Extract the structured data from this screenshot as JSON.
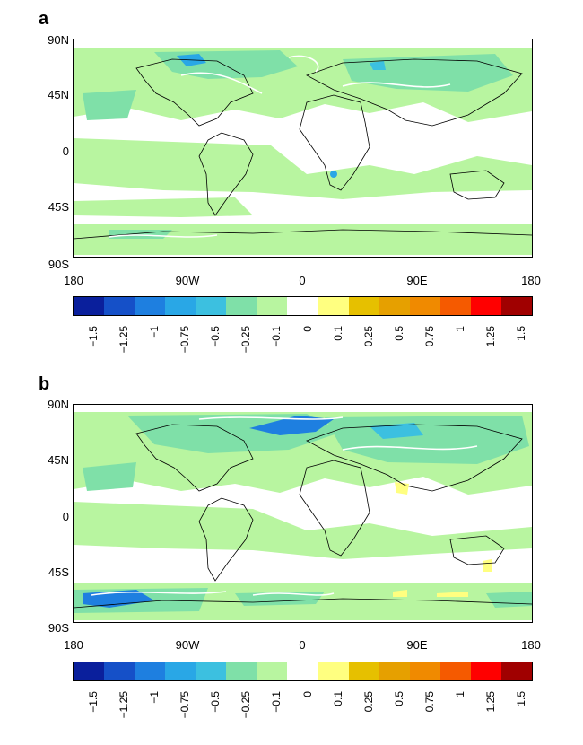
{
  "panels": [
    {
      "letter": "a",
      "lat_labels": [
        "90N",
        "45N",
        "0",
        "45S",
        "90S"
      ],
      "lon_labels": [
        "180",
        "90W",
        "0",
        "90E",
        "180"
      ]
    },
    {
      "letter": "b",
      "lat_labels": [
        "90N",
        "45N",
        "0",
        "45S",
        "90S"
      ],
      "lon_labels": [
        "180",
        "90W",
        "0",
        "90E",
        "180"
      ]
    }
  ],
  "colorbar": {
    "colors": [
      "#0a1f9c",
      "#1550c8",
      "#1e7fe0",
      "#29a7e6",
      "#3cc0e0",
      "#7fe0a8",
      "#b8f5a0",
      "#ffffff",
      "#ffff80",
      "#e6c000",
      "#e6a000",
      "#f08a00",
      "#f55a00",
      "#ff0000",
      "#a00000"
    ],
    "labels": [
      "−1.5",
      "−1.25",
      "−1",
      "−0.75",
      "−0.5",
      "−0.25",
      "−0.1",
      "0",
      "0.1",
      "0.25",
      "0.5",
      "0.75",
      "1",
      "1.25",
      "1.5"
    ]
  },
  "legend_colors": {
    "land_outline": "#000000",
    "contour": "#ffffff",
    "weak_negative": "#b8f5a0",
    "moderate_negative": "#7fe0a8"
  }
}
